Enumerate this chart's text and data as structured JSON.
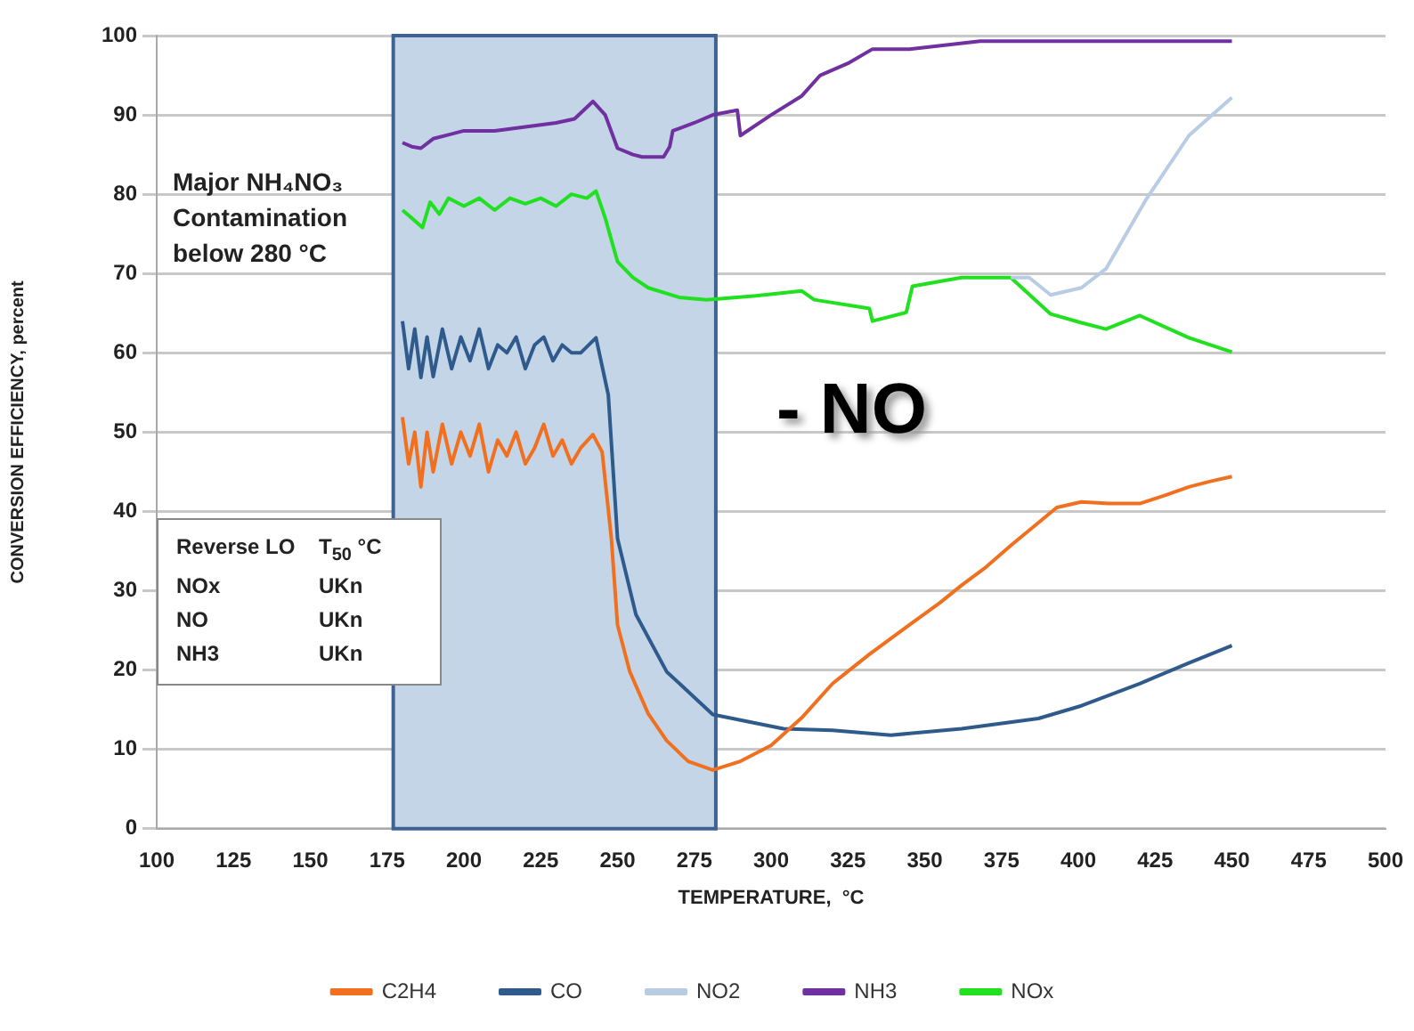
{
  "chart_data": {
    "type": "line",
    "xlabel": "TEMPERATURE,  °C",
    "ylabel": "CONVERSION EFFICIENCY, percent",
    "xlim": [
      100,
      500
    ],
    "xticks": [
      100,
      125,
      150,
      175,
      200,
      225,
      250,
      275,
      300,
      325,
      350,
      375,
      400,
      425,
      450,
      475,
      500
    ],
    "ylim": [
      0,
      100
    ],
    "yticks": [
      0,
      10,
      20,
      30,
      40,
      50,
      60,
      70,
      80,
      90,
      100
    ],
    "grid": "y",
    "legend": "bottom",
    "marker": "none",
    "line_style": "solid",
    "bands": [
      {
        "axis": "x",
        "from": 177,
        "to": 282,
        "color": "#c5d5e8"
      }
    ],
    "annotations": [
      "Major NH₄NO₃ Contamination below 280 °C",
      "- NO",
      "Reverse LO",
      "T$_{50}$ °C",
      "NOx",
      "UKn",
      "NO",
      "UKn",
      "NH3",
      "UKn"
    ],
    "series": [
      {
        "name": "C2H4",
        "color": "#f07020",
        "x": [
          180,
          182,
          184,
          186,
          188,
          190,
          193,
          196,
          199,
          202,
          205,
          208,
          211,
          214,
          217,
          220,
          223,
          226,
          229,
          232,
          235,
          238,
          242,
          245,
          248,
          250,
          254,
          260,
          266,
          273,
          281,
          290,
          300,
          310,
          320,
          332,
          345,
          355,
          362,
          370,
          378,
          393,
          401,
          410,
          420,
          428,
          436,
          443,
          450
        ],
        "values": [
          51.9,
          46,
          50,
          43.1,
          50,
          45,
          51,
          46,
          50,
          47,
          51,
          45,
          49,
          47,
          50,
          46,
          48,
          51,
          47,
          49,
          46,
          48,
          49.7,
          47.5,
          36.6,
          25.7,
          19.8,
          14.5,
          11.1,
          8.5,
          7.4,
          8.5,
          10.5,
          14,
          18.3,
          22,
          25.7,
          28.5,
          30.7,
          33,
          35.7,
          40.5,
          41.2,
          41,
          41,
          42,
          43.1,
          43.8,
          44.4
        ]
      },
      {
        "name": "CO",
        "color": "#2e5a8c",
        "x": [
          180,
          182,
          184,
          186,
          188,
          190,
          193,
          196,
          199,
          202,
          205,
          208,
          211,
          214,
          217,
          220,
          223,
          226,
          229,
          232,
          235,
          238,
          243,
          247,
          250,
          256,
          266,
          281,
          304,
          320,
          339,
          362,
          387,
          401,
          420,
          436,
          450
        ],
        "values": [
          64,
          58,
          63,
          56.9,
          62,
          57,
          63,
          58,
          62,
          59,
          63,
          58,
          61,
          60,
          62,
          58,
          61,
          62,
          59,
          61,
          60,
          60,
          61.9,
          54.7,
          36.6,
          27,
          19.8,
          14.4,
          12.6,
          12.4,
          11.8,
          12.6,
          13.9,
          15.5,
          18.3,
          20.9,
          23.1
        ]
      },
      {
        "name": "NO2",
        "color": "#b8cce4",
        "x": [
          378,
          384,
          391,
          401,
          409,
          422,
          436,
          450
        ],
        "values": [
          69.5,
          69.5,
          67.3,
          68.2,
          70.6,
          79.3,
          87.4,
          92.2
        ]
      },
      {
        "name": "NH3",
        "color": "#7030a0",
        "x": [
          180,
          183,
          186,
          190,
          195,
          200,
          210,
          220,
          230,
          236,
          242,
          246,
          250,
          255,
          258,
          265,
          267,
          268,
          275,
          281,
          289,
          290,
          300,
          310,
          316,
          325,
          333,
          345,
          368,
          400,
          450
        ],
        "values": [
          86.5,
          86,
          85.8,
          87,
          87.5,
          88,
          88,
          88.5,
          89,
          89.5,
          91.7,
          90,
          85.8,
          85,
          84.7,
          84.7,
          86,
          88,
          89,
          90,
          90.6,
          87.4,
          90,
          92.4,
          95,
          96.5,
          98.3,
          98.3,
          99.3,
          99.3,
          99.3
        ]
      },
      {
        "name": "NOx",
        "color": "#20e020",
        "x": [
          180,
          183,
          186.5,
          189,
          192,
          195,
          200,
          205,
          210,
          215,
          220,
          225,
          230,
          235,
          240,
          243,
          246,
          250,
          255,
          260,
          270,
          279,
          295,
          310,
          314,
          332,
          333,
          344,
          346,
          362,
          378,
          391,
          401,
          409,
          420,
          436,
          450
        ],
        "values": [
          78,
          77,
          75.8,
          79,
          77.5,
          79.5,
          78.5,
          79.5,
          78,
          79.5,
          78.8,
          79.5,
          78.5,
          80,
          79.5,
          80.4,
          77,
          71.5,
          69.5,
          68.2,
          67,
          66.7,
          67.2,
          67.8,
          66.7,
          65.6,
          64,
          65.1,
          68.4,
          69.5,
          69.5,
          64.9,
          63.8,
          63,
          64.7,
          61.9,
          60.1
        ]
      }
    ]
  }
}
